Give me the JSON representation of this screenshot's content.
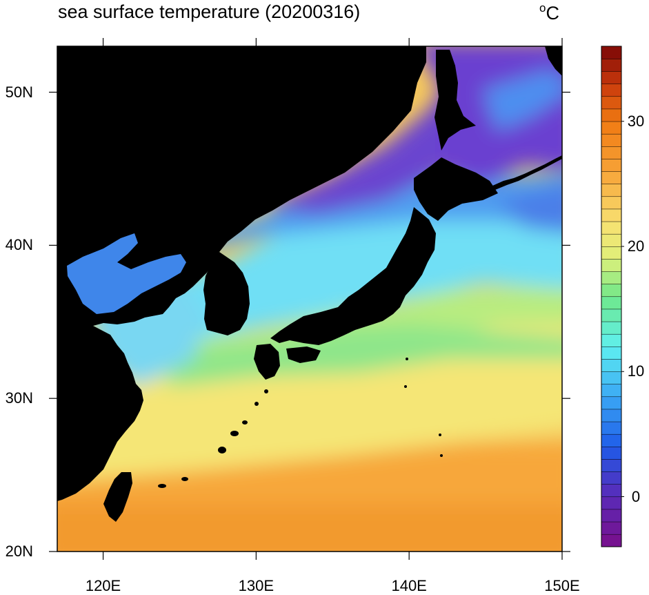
{
  "title": "sea surface temperature (20200316)",
  "units": {
    "degree": "o",
    "letter": "C"
  },
  "map": {
    "lat_range": [
      20,
      53
    ],
    "lon_range": [
      117,
      150
    ],
    "lat_ticks": [
      {
        "value": 20,
        "label": "20N"
      },
      {
        "value": 30,
        "label": "30N"
      },
      {
        "value": 40,
        "label": "40N"
      },
      {
        "value": 50,
        "label": "50N"
      }
    ],
    "lon_ticks": [
      {
        "value": 120,
        "label": "120E"
      },
      {
        "value": 130,
        "label": "130E"
      },
      {
        "value": 140,
        "label": "140E"
      },
      {
        "value": 150,
        "label": "150E"
      }
    ],
    "land_color": "#000000"
  },
  "colorbar": {
    "min": -4,
    "max": 36,
    "levels": 40,
    "ticks": [
      {
        "value": 0,
        "label": "0"
      },
      {
        "value": 10,
        "label": "10"
      },
      {
        "value": 20,
        "label": "20"
      },
      {
        "value": 30,
        "label": "30"
      }
    ],
    "color_stops": [
      {
        "value": -4,
        "color": "#7a0e8a"
      },
      {
        "value": 0,
        "color": "#5a2ab8"
      },
      {
        "value": 4,
        "color": "#1f5be8"
      },
      {
        "value": 8,
        "color": "#3aa8f5"
      },
      {
        "value": 12,
        "color": "#5ff0f0"
      },
      {
        "value": 16,
        "color": "#6fe88a"
      },
      {
        "value": 19,
        "color": "#dff07a"
      },
      {
        "value": 22,
        "color": "#f8e070"
      },
      {
        "value": 26,
        "color": "#f7a338"
      },
      {
        "value": 30,
        "color": "#f07a12"
      },
      {
        "value": 33,
        "color": "#c8380c"
      },
      {
        "value": 36,
        "color": "#7a0606"
      }
    ]
  }
}
